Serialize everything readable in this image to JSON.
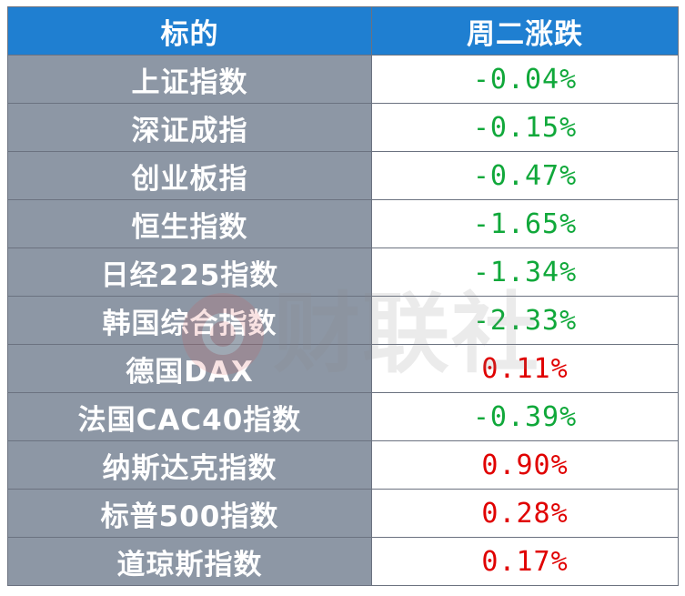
{
  "header": {
    "col_name": "标的",
    "col_change": "周二涨跌"
  },
  "watermark": {
    "text": "财联社",
    "logo_icon": "cls-logo-icon"
  },
  "colors": {
    "header_bg": "#1f7fd1",
    "name_cell_bg": "#8d97a5",
    "negative": "#10a83a",
    "positive": "#e00000"
  },
  "chart_data": {
    "type": "table",
    "columns": [
      "标的",
      "周二涨跌"
    ],
    "rows": [
      {
        "name": "上证指数",
        "change": "-0.04%",
        "value": -0.04
      },
      {
        "name": "深证成指",
        "change": "-0.15%",
        "value": -0.15
      },
      {
        "name": "创业板指",
        "change": "-0.47%",
        "value": -0.47
      },
      {
        "name": "恒生指数",
        "change": "-1.65%",
        "value": -1.65
      },
      {
        "name": "日经225指数",
        "change": "-1.34%",
        "value": -1.34
      },
      {
        "name": "韩国综合指数",
        "change": "-2.33%",
        "value": -2.33
      },
      {
        "name": "德国DAX",
        "change": "0.11%",
        "value": 0.11
      },
      {
        "name": "法国CAC40指数",
        "change": "-0.39%",
        "value": -0.39
      },
      {
        "name": "纳斯达克指数",
        "change": "0.90%",
        "value": 0.9
      },
      {
        "name": "标普500指数",
        "change": "0.28%",
        "value": 0.28
      },
      {
        "name": "道琼斯指数",
        "change": "0.17%",
        "value": 0.17
      }
    ]
  }
}
